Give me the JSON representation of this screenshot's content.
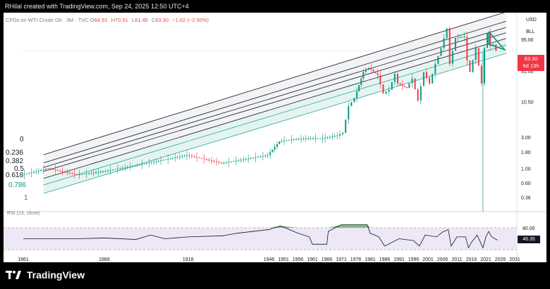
{
  "header": {
    "text": "RHilal created with TradingView.com, Sep 24, 2025 12:50 UTC+4"
  },
  "legend": {
    "symbol": "CFDs on WTI Crude Oil · 3M · TVC",
    "open_label": "O",
    "open": "64.91",
    "high_label": "H",
    "high": "70.51",
    "low_label": "L",
    "low": "61.45",
    "close_label": "C",
    "close": "63.30",
    "change": "−1.62 (−2.50%)"
  },
  "currency": "USD",
  "unit": "BLL",
  "price_tag": {
    "price": "63.30",
    "countdown": "6d 13h"
  },
  "rsi": {
    "label": "RSI (13, close)",
    "value": "46.35",
    "upper": "80.00",
    "lower": "20.00"
  },
  "footer": {
    "brand": "TradingView"
  },
  "colors": {
    "up": "#089981",
    "down": "#f23645",
    "fib_line": "#131722",
    "fib_teal": "#26a69a",
    "rsi_fill": "#4caf50",
    "rsi_band": "#ede7f6"
  },
  "fib_levels": [
    "0",
    "0.236",
    "0.382",
    "0.5",
    "0.618",
    "0.786",
    "1"
  ],
  "chart_data": {
    "type": "candlestick",
    "scale": "log",
    "y_ticks": [
      95.0,
      31.0,
      10.5,
      3.0,
      1.8,
      1.0,
      0.6,
      0.36
    ],
    "y_tick_labels": [
      "95.00",
      "31.00",
      "10.50",
      "3.00",
      "1.80",
      "1.00",
      "0.60",
      "0.36"
    ],
    "x_tick_labels": [
      "1861",
      "1889",
      "1918",
      "1946",
      "1951",
      "1956",
      "1961",
      "1966",
      "1971",
      "1976",
      "1981",
      "1986",
      "1991",
      "1996",
      "2001",
      "2006",
      "2011",
      "2016",
      "2021",
      "2026",
      "2031"
    ],
    "x_ticks": [
      1861,
      1889,
      1918,
      1946,
      1951,
      1956,
      1961,
      1966,
      1971,
      1976,
      1981,
      1986,
      1991,
      1996,
      2001,
      2006,
      2011,
      2016,
      2021,
      2026,
      2031
    ],
    "ohlc_last": {
      "open": 64.91,
      "high": 70.51,
      "low": 61.45,
      "close": 63.3
    },
    "price_path": [
      [
        1861,
        0.8
      ],
      [
        1870,
        1.0
      ],
      [
        1880,
        0.8
      ],
      [
        1889,
        0.9
      ],
      [
        1900,
        1.1
      ],
      [
        1918,
        1.6
      ],
      [
        1930,
        1.2
      ],
      [
        1946,
        1.6
      ],
      [
        1950,
        2.6
      ],
      [
        1955,
        2.8
      ],
      [
        1960,
        2.9
      ],
      [
        1965,
        2.9
      ],
      [
        1970,
        3.2
      ],
      [
        1972,
        3.5
      ],
      [
        1974,
        9.0
      ],
      [
        1976,
        12.0
      ],
      [
        1979,
        30.0
      ],
      [
        1981,
        35.0
      ],
      [
        1984,
        27.0
      ],
      [
        1986,
        14.0
      ],
      [
        1988,
        16.0
      ],
      [
        1990,
        28.0
      ],
      [
        1991,
        20.0
      ],
      [
        1994,
        17.0
      ],
      [
        1996,
        24.0
      ],
      [
        1998,
        11.0
      ],
      [
        2000,
        30.0
      ],
      [
        2002,
        20.0
      ],
      [
        2004,
        40.0
      ],
      [
        2006,
        70.0
      ],
      [
        2008,
        140.0
      ],
      [
        2009,
        40.0
      ],
      [
        2011,
        100.0
      ],
      [
        2014,
        105.0
      ],
      [
        2015,
        45.0
      ],
      [
        2016,
        30.0
      ],
      [
        2018,
        70.0
      ],
      [
        2020,
        20.0
      ],
      [
        2021,
        70.0
      ],
      [
        2022,
        120.0
      ],
      [
        2023,
        75.0
      ],
      [
        2024,
        80.0
      ],
      [
        2025,
        63.3
      ]
    ],
    "rsi_path": [
      [
        1861,
        50
      ],
      [
        1880,
        50
      ],
      [
        1889,
        52
      ],
      [
        1900,
        48
      ],
      [
        1905,
        60
      ],
      [
        1910,
        50
      ],
      [
        1918,
        55
      ],
      [
        1930,
        58
      ],
      [
        1935,
        65
      ],
      [
        1946,
        75
      ],
      [
        1950,
        85
      ],
      [
        1956,
        65
      ],
      [
        1960,
        55
      ],
      [
        1961,
        35
      ],
      [
        1966,
        35
      ],
      [
        1966.5,
        70
      ],
      [
        1971,
        88
      ],
      [
        1976,
        88
      ],
      [
        1980,
        88
      ],
      [
        1981,
        65
      ],
      [
        1984,
        55
      ],
      [
        1986,
        30
      ],
      [
        1991,
        50
      ],
      [
        1996,
        45
      ],
      [
        1998,
        30
      ],
      [
        2000,
        60
      ],
      [
        2004,
        55
      ],
      [
        2006,
        68
      ],
      [
        2008,
        75
      ],
      [
        2009,
        30
      ],
      [
        2011,
        55
      ],
      [
        2014,
        55
      ],
      [
        2015,
        25
      ],
      [
        2016,
        40
      ],
      [
        2018,
        60
      ],
      [
        2020,
        25
      ],
      [
        2021,
        55
      ],
      [
        2022,
        70
      ],
      [
        2023,
        55
      ],
      [
        2025,
        46.35
      ]
    ]
  }
}
